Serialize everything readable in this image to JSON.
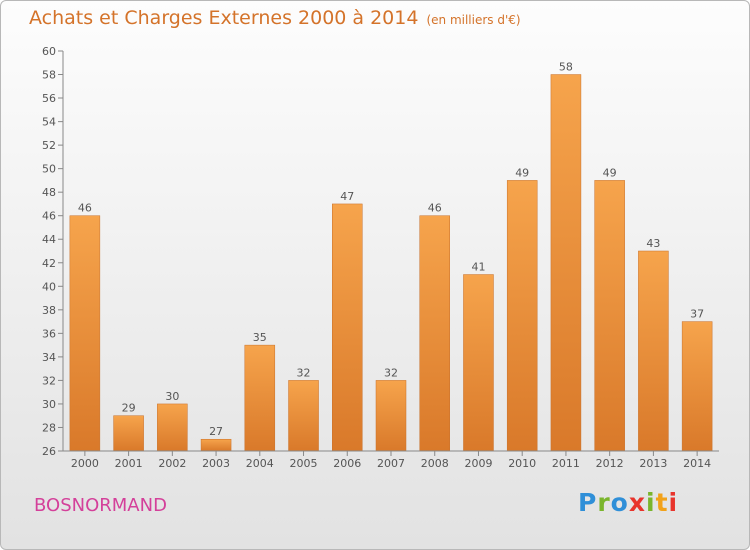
{
  "header": {
    "title": "Achats et Charges Externes 2000 à 2014",
    "unit": "(en milliers d'€)"
  },
  "commune": "BOSNORMAND",
  "logo": {
    "letters": [
      "P",
      "r",
      "o",
      "x",
      "i",
      "t",
      "i"
    ],
    "colors": [
      "#2f8fd8",
      "#7ab52c",
      "#2f8fd8",
      "#e8342c",
      "#7ab52c",
      "#f2a21a",
      "#e8342c"
    ]
  },
  "chart_data": {
    "type": "bar",
    "categories": [
      "2000",
      "2001",
      "2002",
      "2003",
      "2004",
      "2005",
      "2006",
      "2007",
      "2008",
      "2009",
      "2010",
      "2011",
      "2012",
      "2013",
      "2014"
    ],
    "values": [
      46,
      29,
      30,
      27,
      35,
      32,
      47,
      32,
      46,
      41,
      49,
      58,
      49,
      43,
      37
    ],
    "ylim": [
      26,
      60
    ],
    "yticks": [
      26,
      28,
      30,
      32,
      34,
      36,
      38,
      40,
      42,
      44,
      46,
      48,
      50,
      52,
      54,
      56,
      58,
      60
    ],
    "grid": false,
    "legend": "none",
    "bar_color_top": "#f6a44c",
    "bar_color_bottom": "#d9792a",
    "axis_color": "#888888"
  }
}
